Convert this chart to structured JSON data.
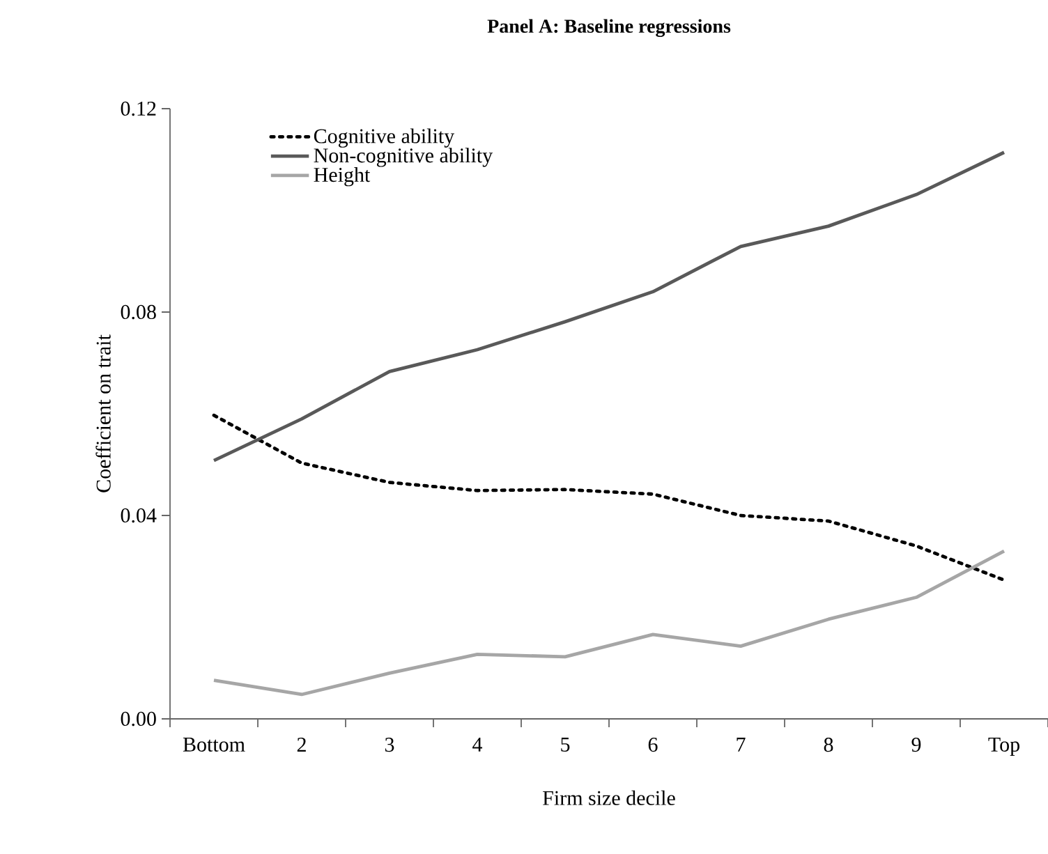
{
  "chart_data": {
    "type": "line",
    "title": "Panel A: Baseline regressions",
    "xlabel": "Firm size decile",
    "ylabel": "Coefficient on trait",
    "categories": [
      "Bottom",
      "2",
      "3",
      "4",
      "5",
      "6",
      "7",
      "8",
      "9",
      "Top"
    ],
    "series": [
      {
        "name": "Cognitive ability",
        "color": "#000000",
        "line_style": "dotted",
        "values": [
          0.0597,
          0.0503,
          0.0465,
          0.0449,
          0.0451,
          0.0442,
          0.04,
          0.0389,
          0.034,
          0.0273
        ]
      },
      {
        "name": "Non-cognitive ability",
        "color": "#595959",
        "line_style": "solid",
        "values": [
          0.0508,
          0.059,
          0.0683,
          0.0726,
          0.0781,
          0.084,
          0.0929,
          0.0969,
          0.1031,
          0.1114
        ]
      },
      {
        "name": "Height",
        "color": "#a6a6a6",
        "line_style": "solid",
        "values": [
          0.0076,
          0.0048,
          0.009,
          0.0127,
          0.0122,
          0.0166,
          0.0143,
          0.0196,
          0.0239,
          0.033
        ]
      }
    ],
    "ylim": [
      0,
      0.12
    ],
    "yticks": [
      {
        "value": 0,
        "label": "0.00"
      },
      {
        "value": 0.04,
        "label": "0.04"
      },
      {
        "value": 0.08,
        "label": "0.08"
      },
      {
        "value": 0.12,
        "label": "0.12"
      }
    ],
    "grid": false,
    "legend": "top left"
  }
}
